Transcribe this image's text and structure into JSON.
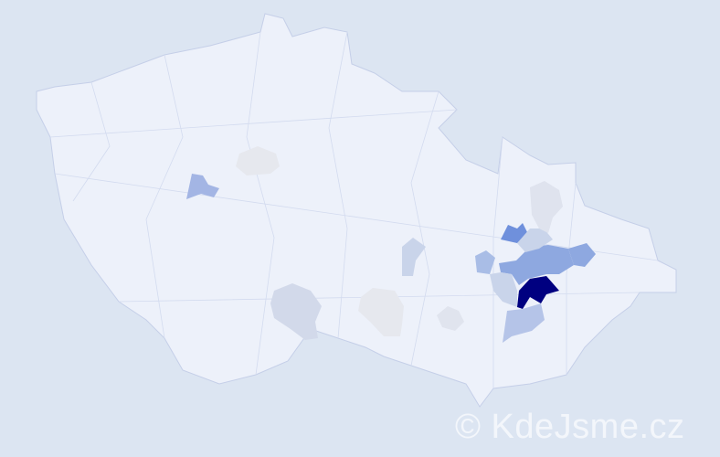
{
  "map": {
    "watermark": "© KdeJsme.cz",
    "colors": {
      "background": "#dce5f2",
      "base_district": "#edf1fa",
      "border": "#c5cfe8",
      "light": "#c9d4ea",
      "medium": "#8ea8e0",
      "strong": "#6f90dc",
      "highest": "#000080",
      "grey": "#e6e8ee"
    }
  }
}
